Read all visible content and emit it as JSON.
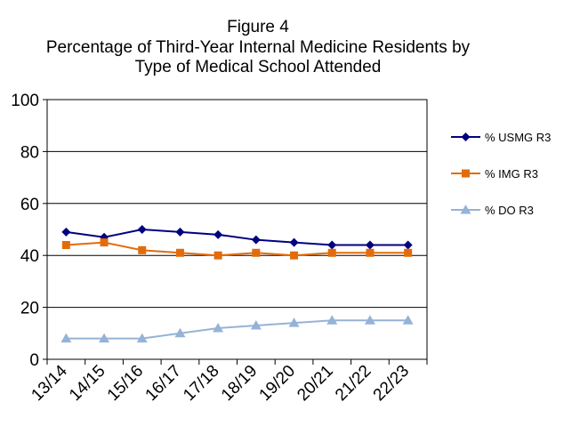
{
  "chart_data": {
    "type": "line",
    "title_lines": [
      "Figure 4",
      "Percentage of Third-Year Internal Medicine Residents by",
      "Type of Medical School Attended"
    ],
    "xlabel": "",
    "ylabel": "",
    "categories": [
      "13/14",
      "14/15",
      "15/16",
      "16/17",
      "17/18",
      "18/19",
      "19/20",
      "20/21",
      "21/22",
      "22/23"
    ],
    "y_ticks": [
      "0",
      "20",
      "40",
      "60",
      "80",
      "100"
    ],
    "ylim": [
      0,
      100
    ],
    "grid": "horizontal",
    "legend_position": "right",
    "series": [
      {
        "name": "% USMG R3",
        "color": "#000080",
        "marker": "diamond",
        "values": [
          49,
          47,
          50,
          49,
          48,
          46,
          45,
          44,
          44,
          44
        ]
      },
      {
        "name": "% IMG R3",
        "color": "#E36C0A",
        "marker": "square",
        "values": [
          44,
          45,
          42,
          41,
          40,
          41,
          40,
          41,
          41,
          41
        ]
      },
      {
        "name": "% DO R3",
        "color": "#95B3D7",
        "marker": "triangle",
        "values": [
          8,
          8,
          8,
          10,
          12,
          13,
          14,
          15,
          15,
          15
        ]
      }
    ]
  }
}
